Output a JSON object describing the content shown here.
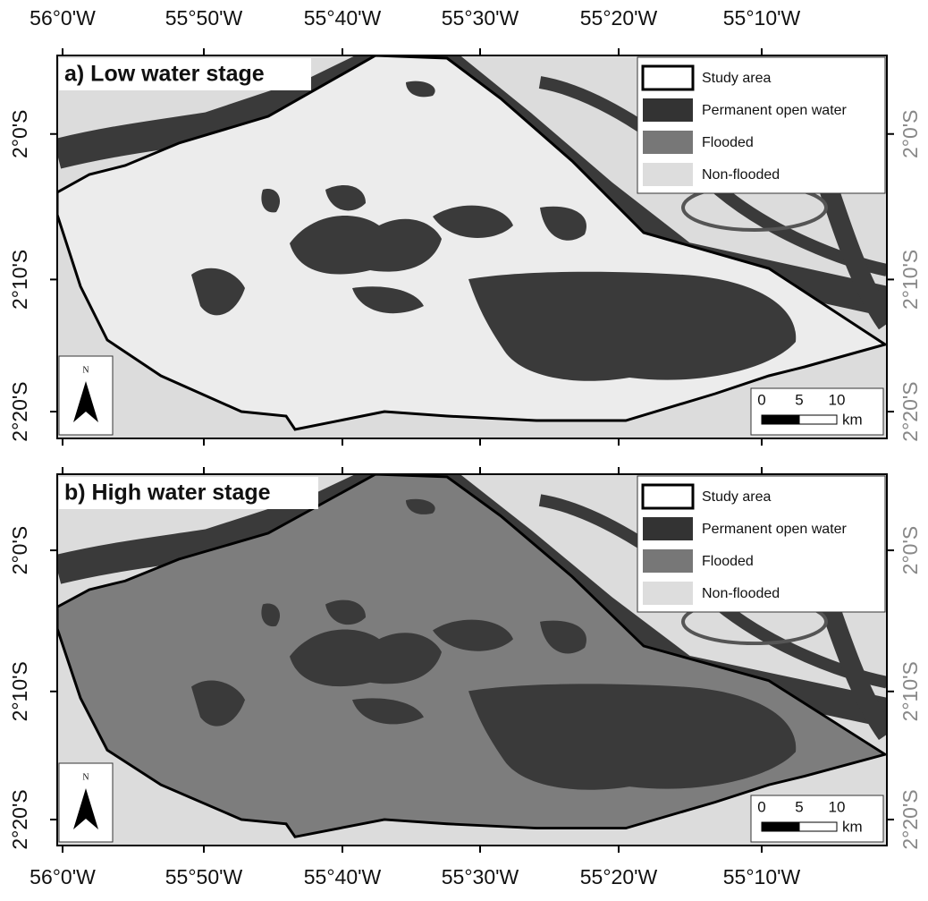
{
  "top_axis": [
    "56°0'W",
    "55°50'W",
    "55°40'W",
    "55°30'W",
    "55°20'W",
    "55°10'W"
  ],
  "bottom_axis": [
    "56°0'W",
    "55°50'W",
    "55°40'W",
    "55°30'W",
    "55°20'W",
    "55°10'W"
  ],
  "panels": [
    {
      "title": "a) Low water stage",
      "left_axis": [
        "2°0'S",
        "2°10'S",
        "2°20'S"
      ],
      "right_axis": [
        "2°0'S",
        "2°10'S",
        "2°20'S"
      ],
      "legend": [
        "Study area",
        "Permanent open water",
        "Flooded",
        "Non-flooded"
      ],
      "north": "N",
      "scale": [
        "0",
        "5",
        "10",
        "km"
      ]
    },
    {
      "title": "b) High water stage",
      "left_axis": [
        "2°0'S",
        "2°10'S",
        "2°20'S"
      ],
      "right_axis": [
        "2°0'S",
        "2°10'S",
        "2°20'S"
      ],
      "legend": [
        "Study area",
        "Permanent open water",
        "Flooded",
        "Non-flooded"
      ],
      "north": "N",
      "scale": [
        "0",
        "5",
        "10",
        "km"
      ]
    }
  ]
}
